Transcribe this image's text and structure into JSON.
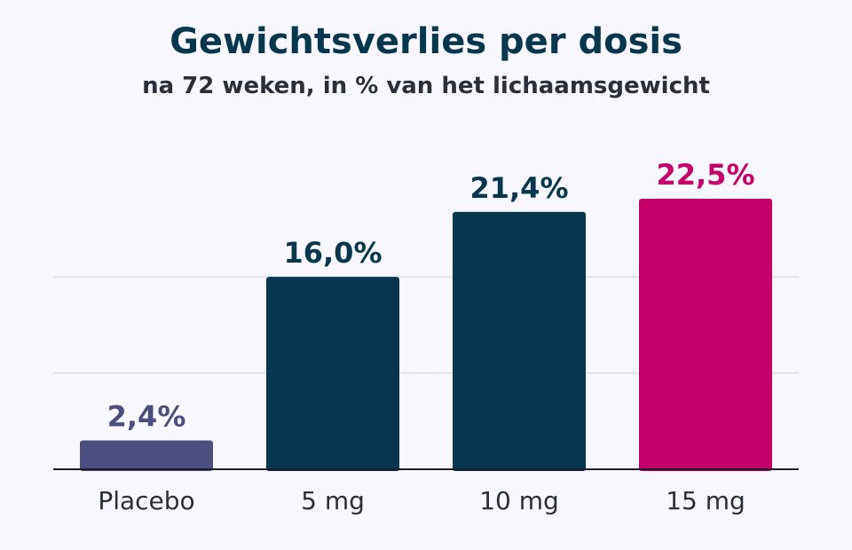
{
  "chart_data": {
    "type": "bar",
    "title": "Gewichtsverlies per dosis",
    "subtitle": "na 72 weken, in % van het lichaamsgewicht",
    "xlabel": "",
    "ylabel": "",
    "categories": [
      "Placebo",
      "5 mg",
      "10 mg",
      "15 mg"
    ],
    "values": [
      2.4,
      16.0,
      21.4,
      22.5
    ],
    "value_labels": [
      "2,4%",
      "16,0%",
      "21,4%",
      "22,5%"
    ],
    "colors": [
      "#4b4f7d",
      "#08374d",
      "#08374d",
      "#c4006b"
    ],
    "ylim": [
      0,
      22.5
    ],
    "gridlines": [
      8,
      16
    ],
    "grid": true,
    "legend": "none"
  }
}
